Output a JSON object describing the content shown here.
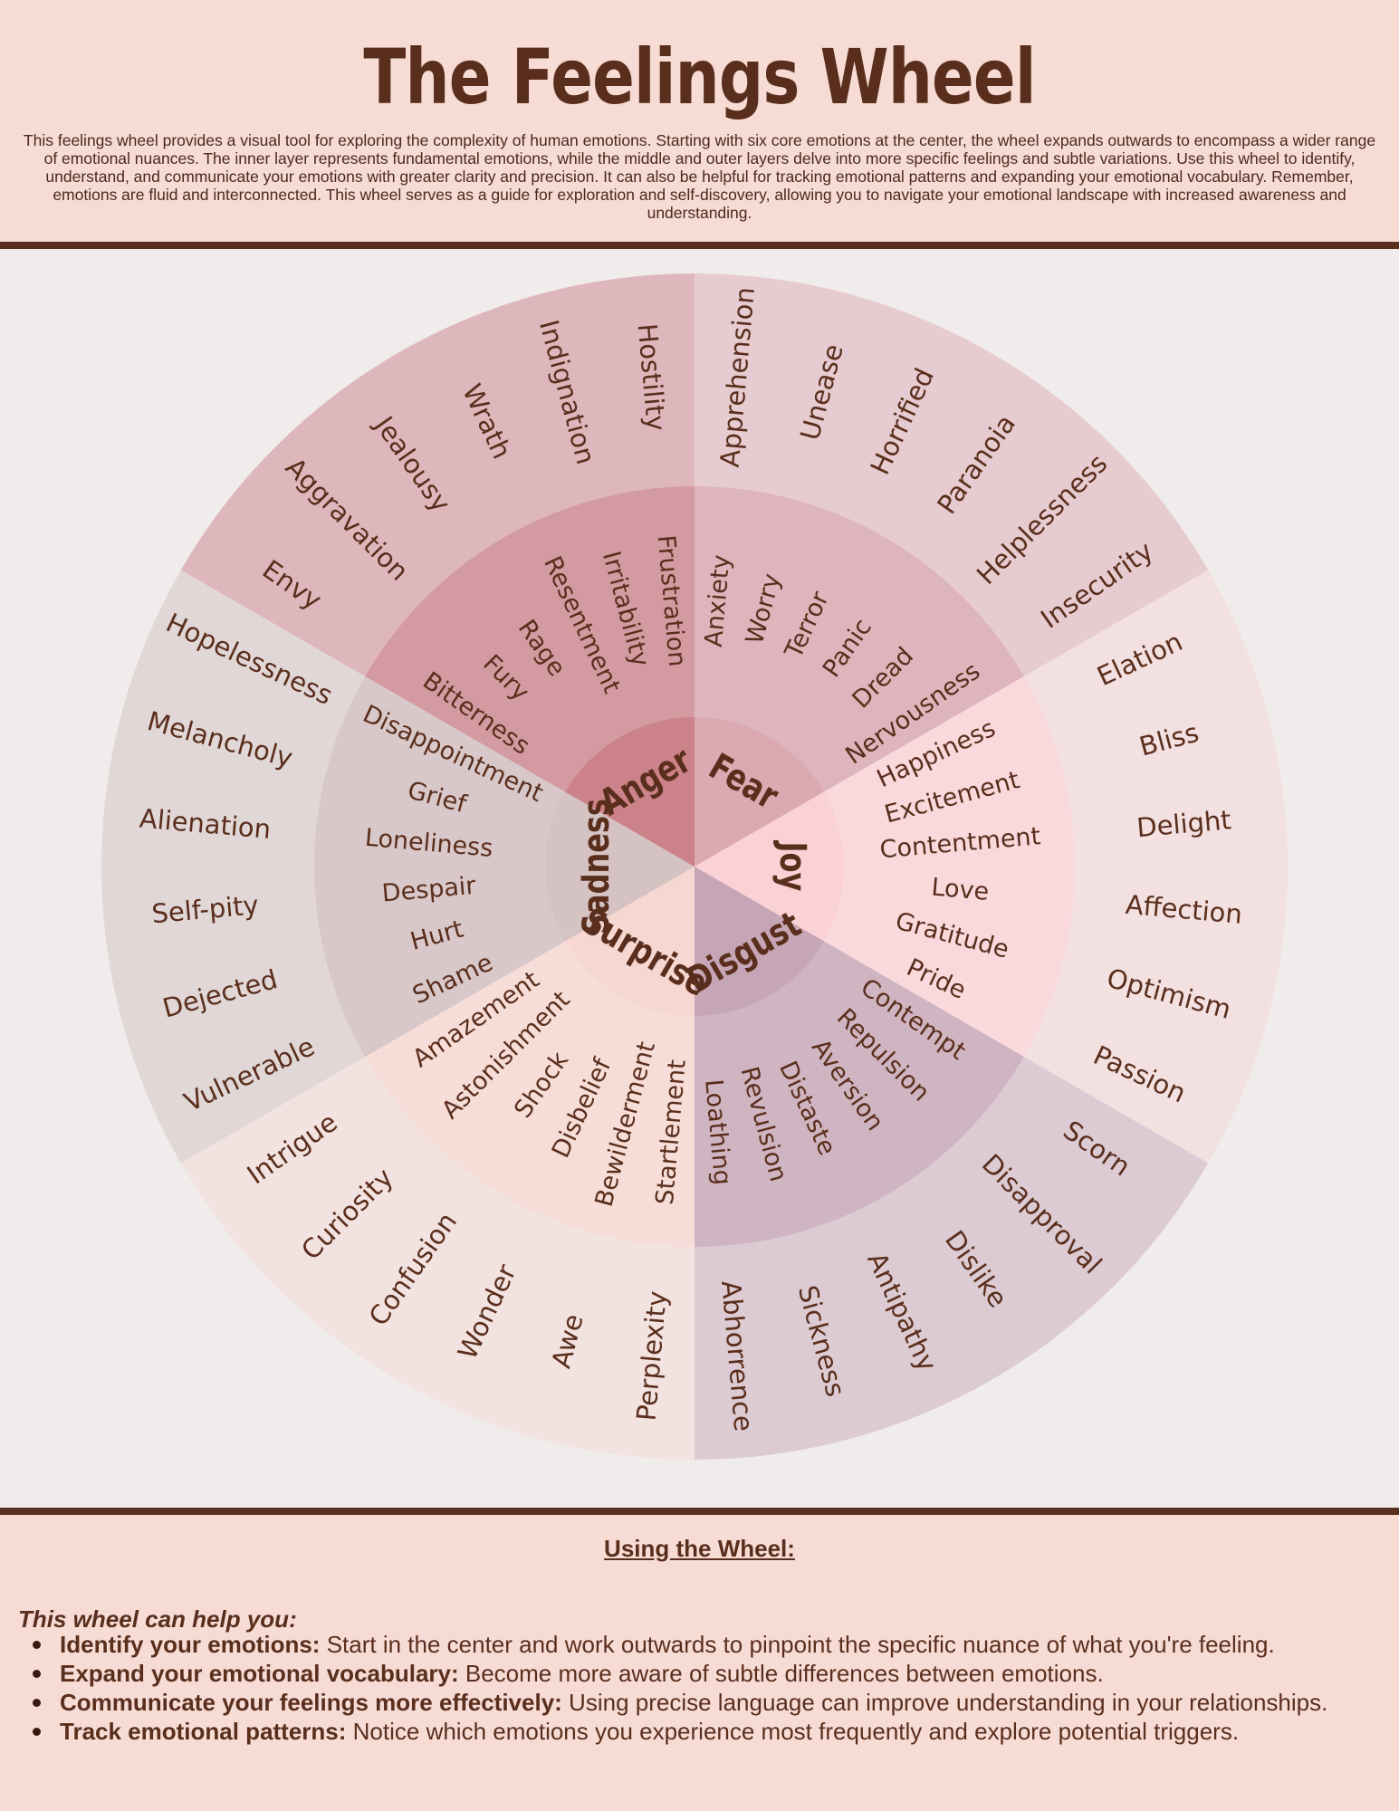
{
  "header": {
    "title": "The Feelings Wheel",
    "intro": "This feelings wheel provides a visual tool for exploring the complexity of human emotions. Starting with six core emotions at the center, the wheel expands outwards to encompass a wider range of emotional nuances. The inner layer represents fundamental emotions, while the middle and outer layers delve into more specific feelings and subtle variations. Use this wheel to identify, understand, and communicate your emotions with greater clarity and precision. It can also be helpful for tracking emotional patterns and expanding your emotional vocabulary. Remember, emotions are fluid and interconnected. This wheel serves as a guide for exploration and self-discovery, allowing you to navigate your emotional landscape with increased awareness and understanding."
  },
  "wheel": {
    "sectors": [
      {
        "core": "Fear",
        "colors": {
          "core": "#dba9b2",
          "middle": "#deb5bc",
          "outer": "#e6cbd0"
        },
        "middle": [
          "Anxiety",
          "Worry",
          "Terror",
          "Panic",
          "Dread",
          "Nervousness"
        ],
        "outer": [
          "Apprehension",
          "Unease",
          "Horrified",
          "Paranoia",
          "Helplessness",
          "Insecurity"
        ]
      },
      {
        "core": "Joy",
        "colors": {
          "core": "#fad1d4",
          "middle": "#f9d9dc",
          "outer": "#f3e0e1"
        },
        "middle": [
          "Happiness",
          "Excitement",
          "Contentment",
          "Love",
          "Gratitude",
          "Pride"
        ],
        "outer": [
          "Elation",
          "Bliss",
          "Delight",
          "Affection",
          "Optimism",
          "Passion"
        ]
      },
      {
        "core": "Disgust",
        "colors": {
          "core": "#c6a6b6",
          "middle": "#cfb4c1",
          "outer": "#dccbd3"
        },
        "middle": [
          "Contempt",
          "Repulsion",
          "Aversion",
          "Distaste",
          "Revulsion",
          "Loathing"
        ],
        "outer": [
          "Scorn",
          "Disapproval",
          "Dislike",
          "Antipathy",
          "Sickness",
          "Abhorrence"
        ]
      },
      {
        "core": "Surprise",
        "colors": {
          "core": "#f6d7d1",
          "middle": "#f6ddd8",
          "outer": "#f2e2e0"
        },
        "middle": [
          "Startlement",
          "Bewilderment",
          "Disbelief",
          "Shock",
          "Astonishment",
          "Amazement"
        ],
        "outer": [
          "Perplexity",
          "Awe",
          "Wonder",
          "Confusion",
          "Curiosity",
          "Intrigue"
        ]
      },
      {
        "core": "Sadness",
        "colors": {
          "core": "#d5c2c3",
          "middle": "#d9c8c9",
          "outer": "#e1d7d7"
        },
        "middle": [
          "Shame",
          "Hurt",
          "Despair",
          "Loneliness",
          "Grief",
          "Disappointment"
        ],
        "outer": [
          "Vulnerable",
          "Dejected",
          "Self-pity",
          "Alienation",
          "Melancholy",
          "Hopelessness"
        ]
      },
      {
        "core": "Anger",
        "colors": {
          "core": "#cc8289",
          "middle": "#d39ba1",
          "outer": "#deb7bc"
        },
        "middle": [
          "Bitterness",
          "Fury",
          "Rage",
          "Resentment",
          "Irritability",
          "Frustration"
        ],
        "outer": [
          "Envy",
          "Aggravation",
          "Jealousy",
          "Wrath",
          "Indignation",
          "Hostility"
        ]
      }
    ]
  },
  "usage": {
    "title": "Using the Wheel:",
    "intro": "This wheel can help you:",
    "tips": [
      {
        "head": "Identify your emotions:",
        "text": " Start in the center and work outwards to pinpoint the specific nuance of what you're feeling."
      },
      {
        "head": "Expand your emotional vocabulary:",
        "text": " Become more aware of subtle differences between emotions."
      },
      {
        "head": "Communicate your feelings more effectively:",
        "text": " Using precise language can improve understanding in your relationships."
      },
      {
        "head": "Track emotional patterns:",
        "text": " Notice which emotions you experience most frequently and explore potential triggers."
      }
    ]
  }
}
